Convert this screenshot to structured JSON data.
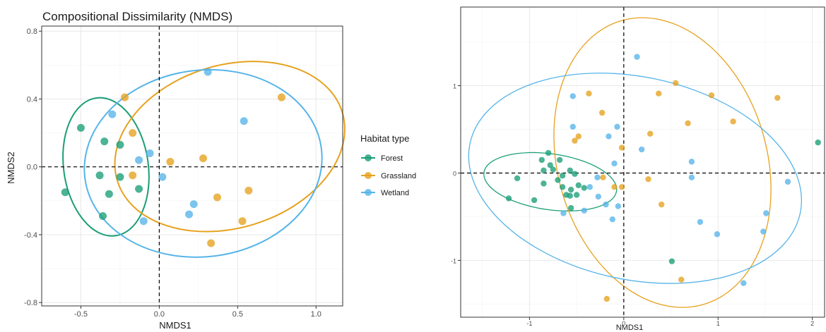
{
  "chart_data": [
    {
      "type": "scatter",
      "title": "Compositional Dissimilarity (NMDS)",
      "xlabel": "NMDS1",
      "ylabel": "NMDS2",
      "xlim": [
        -0.75,
        1.17
      ],
      "ylim": [
        -0.82,
        0.83
      ],
      "x_ticks": [
        -0.5,
        0.0,
        0.5,
        1.0
      ],
      "x_tick_labels": [
        "-0.5",
        "0.0",
        "0.5",
        "1.0"
      ],
      "y_ticks": [
        -0.8,
        -0.4,
        0.0,
        0.4,
        0.8
      ],
      "y_tick_labels": [
        "-0.8",
        "-0.4",
        "0.0",
        "0.4",
        "0.8"
      ],
      "grid": true,
      "reference_lines": {
        "x": 0,
        "y": 0,
        "style": "dashed"
      },
      "legend": {
        "title": "Habitat type",
        "position": "right",
        "entries": [
          "Forest",
          "Grassland",
          "Wetland"
        ]
      },
      "series": [
        {
          "name": "Forest",
          "color": "#1a9e77",
          "points": [
            [
              -0.5,
              0.23
            ],
            [
              -0.35,
              0.15
            ],
            [
              -0.25,
              0.13
            ],
            [
              -0.38,
              -0.05
            ],
            [
              -0.25,
              -0.06
            ],
            [
              -0.6,
              -0.15
            ],
            [
              -0.32,
              -0.16
            ],
            [
              -0.13,
              -0.13
            ],
            [
              -0.36,
              -0.29
            ]
          ],
          "ellipse": {
            "cx": -0.34,
            "cy": 0.0,
            "rx": 0.27,
            "ry": 0.41,
            "angle": -8
          }
        },
        {
          "name": "Grassland",
          "color": "#e6a11d",
          "points": [
            [
              -0.22,
              0.41
            ],
            [
              -0.17,
              0.2
            ],
            [
              0.78,
              0.41
            ],
            [
              0.07,
              0.03
            ],
            [
              0.28,
              0.05
            ],
            [
              -0.17,
              -0.05
            ],
            [
              0.37,
              -0.18
            ],
            [
              0.57,
              -0.14
            ],
            [
              0.53,
              -0.32
            ],
            [
              0.33,
              -0.45
            ]
          ],
          "ellipse": {
            "cx": 0.45,
            "cy": 0.12,
            "rx": 0.75,
            "ry": 0.48,
            "angle": -17
          }
        },
        {
          "name": "Wetland",
          "color": "#56b4e9",
          "points": [
            [
              0.31,
              0.56
            ],
            [
              -0.3,
              0.31
            ],
            [
              0.54,
              0.27
            ],
            [
              -0.06,
              0.08
            ],
            [
              -0.13,
              0.04
            ],
            [
              0.02,
              -0.06
            ],
            [
              0.22,
              -0.22
            ],
            [
              0.19,
              -0.28
            ],
            [
              -0.1,
              -0.32
            ]
          ],
          "ellipse": {
            "cx": 0.28,
            "cy": 0.02,
            "rx": 0.76,
            "ry": 0.55,
            "angle": -7
          }
        }
      ]
    },
    {
      "type": "scatter",
      "title": "",
      "xlabel": "NMDS1",
      "ylabel": "",
      "xlim": [
        -1.73,
        2.13
      ],
      "ylim": [
        -1.65,
        1.9
      ],
      "x_ticks": [
        -1,
        0,
        1,
        2
      ],
      "x_tick_labels": [
        "-1",
        "0",
        "1",
        "2"
      ],
      "y_ticks": [
        -1,
        0,
        1
      ],
      "y_tick_labels": [
        "-1",
        "0",
        "1"
      ],
      "grid": true,
      "reference_lines": {
        "x": 0,
        "y": 0,
        "style": "dashed"
      },
      "series": [
        {
          "color": "#1a9e77",
          "points": [
            [
              -0.8,
              0.23
            ],
            [
              -0.87,
              0.15
            ],
            [
              -0.68,
              0.15
            ],
            [
              -0.78,
              0.09
            ],
            [
              -0.75,
              0.04
            ],
            [
              -0.85,
              0.03
            ],
            [
              -0.57,
              0.03
            ],
            [
              -0.52,
              -0.01
            ],
            [
              -0.65,
              -0.03
            ],
            [
              -1.13,
              -0.06
            ],
            [
              -0.7,
              -0.08
            ],
            [
              -0.85,
              -0.12
            ],
            [
              -0.65,
              -0.16
            ],
            [
              -0.48,
              -0.14
            ],
            [
              -0.42,
              -0.17
            ],
            [
              -0.56,
              -0.19
            ],
            [
              -0.61,
              -0.25
            ],
            [
              -0.57,
              -0.26
            ],
            [
              -0.5,
              -0.25
            ],
            [
              -0.95,
              -0.31
            ],
            [
              -1.22,
              -0.29
            ],
            [
              -0.56,
              -0.4
            ],
            [
              2.06,
              0.35
            ],
            [
              0.51,
              -1.01
            ]
          ],
          "ellipse": {
            "cx": -0.78,
            "cy": -0.1,
            "rx": 0.71,
            "ry": 0.32,
            "angle": 8
          }
        },
        {
          "color": "#e6a11d",
          "points": [
            [
              -0.37,
              0.91
            ],
            [
              0.37,
              0.91
            ],
            [
              0.55,
              1.03
            ],
            [
              0.93,
              0.89
            ],
            [
              1.63,
              0.86
            ],
            [
              -0.23,
              0.69
            ],
            [
              0.28,
              0.45
            ],
            [
              -0.48,
              0.42
            ],
            [
              -0.52,
              0.37
            ],
            [
              0.68,
              0.57
            ],
            [
              1.16,
              0.59
            ],
            [
              -0.02,
              0.29
            ],
            [
              0.26,
              -0.07
            ],
            [
              -0.22,
              -0.05
            ],
            [
              -0.02,
              -0.16
            ],
            [
              -0.1,
              -0.16
            ],
            [
              0.4,
              -0.36
            ],
            [
              0.61,
              -1.22
            ],
            [
              -0.18,
              -1.44
            ]
          ],
          "ellipse": {
            "cx": 0.41,
            "cy": 0.12,
            "rx": 1.11,
            "ry": 1.69,
            "angle": -16
          }
        },
        {
          "color": "#56b4e9",
          "points": [
            [
              0.14,
              1.33
            ],
            [
              -0.54,
              0.88
            ],
            [
              -0.54,
              0.53
            ],
            [
              -0.07,
              0.53
            ],
            [
              -0.16,
              0.42
            ],
            [
              0.19,
              0.27
            ],
            [
              -0.1,
              0.11
            ],
            [
              0.72,
              0.13
            ],
            [
              -0.28,
              -0.05
            ],
            [
              -0.36,
              -0.16
            ],
            [
              0.72,
              -0.05
            ],
            [
              1.74,
              -0.1
            ],
            [
              -0.27,
              -0.27
            ],
            [
              -0.19,
              -0.36
            ],
            [
              -0.06,
              -0.38
            ],
            [
              -0.42,
              -0.43
            ],
            [
              -0.64,
              -0.46
            ],
            [
              -0.12,
              -0.53
            ],
            [
              0.81,
              -0.56
            ],
            [
              1.51,
              -0.46
            ],
            [
              0.99,
              -0.7
            ],
            [
              1.48,
              -0.67
            ],
            [
              1.27,
              -1.26
            ]
          ],
          "ellipse": {
            "cx": 0.12,
            "cy": -0.06,
            "rx": 1.79,
            "ry": 1.16,
            "angle": 12
          }
        }
      ]
    }
  ]
}
